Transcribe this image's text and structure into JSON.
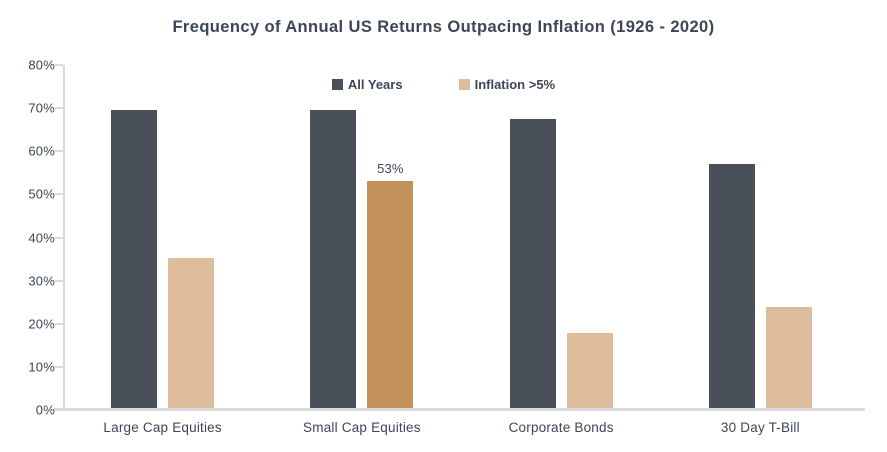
{
  "colors": {
    "background": "#FFFFFF",
    "text": "#3D4655",
    "axis_line": "#D9D9D9",
    "all_years_bar": "#49505A",
    "inflation_bar": "#DDBD9B",
    "inflation_highlight_bar": "#C3915A"
  },
  "legend": {
    "items": [
      {
        "label": "All Years",
        "color": "#49505A"
      },
      {
        "label": "Inflation >5%",
        "color": "#DDBD9B"
      }
    ]
  },
  "chart_data": {
    "type": "bar",
    "title": "Frequency of Annual US Returns Outpacing Inflation (1926 - 2020)",
    "xlabel": "",
    "ylabel": "",
    "categories": [
      "Large Cap Equities",
      "Small Cap Equities",
      "Corporate Bonds",
      "30 Day T-Bill"
    ],
    "series": [
      {
        "name": "All Years",
        "color": "#49505A",
        "values": [
          69.5,
          69.5,
          67.5,
          57
        ]
      },
      {
        "name": "Inflation >5%",
        "color": "#DDBD9B",
        "bar_colors": [
          "#DDBD9B",
          "#C3915A",
          "#DDBD9B",
          "#DDBD9B"
        ],
        "values": [
          35,
          53,
          17.5,
          23.5
        ],
        "data_labels": [
          "",
          "53%",
          "",
          ""
        ]
      }
    ],
    "ylim": [
      0,
      80
    ],
    "y_ticks": [
      {
        "value": 0,
        "label": "0%"
      },
      {
        "value": 10,
        "label": "10%"
      },
      {
        "value": 20,
        "label": "20%"
      },
      {
        "value": 30,
        "label": "30%"
      },
      {
        "value": 40,
        "label": "40%"
      },
      {
        "value": 50,
        "label": "50%"
      },
      {
        "value": 60,
        "label": "60%"
      },
      {
        "value": 70,
        "label": "70%"
      },
      {
        "value": 80,
        "label": "80%"
      }
    ],
    "grid": false,
    "legend_position": "top-center"
  }
}
